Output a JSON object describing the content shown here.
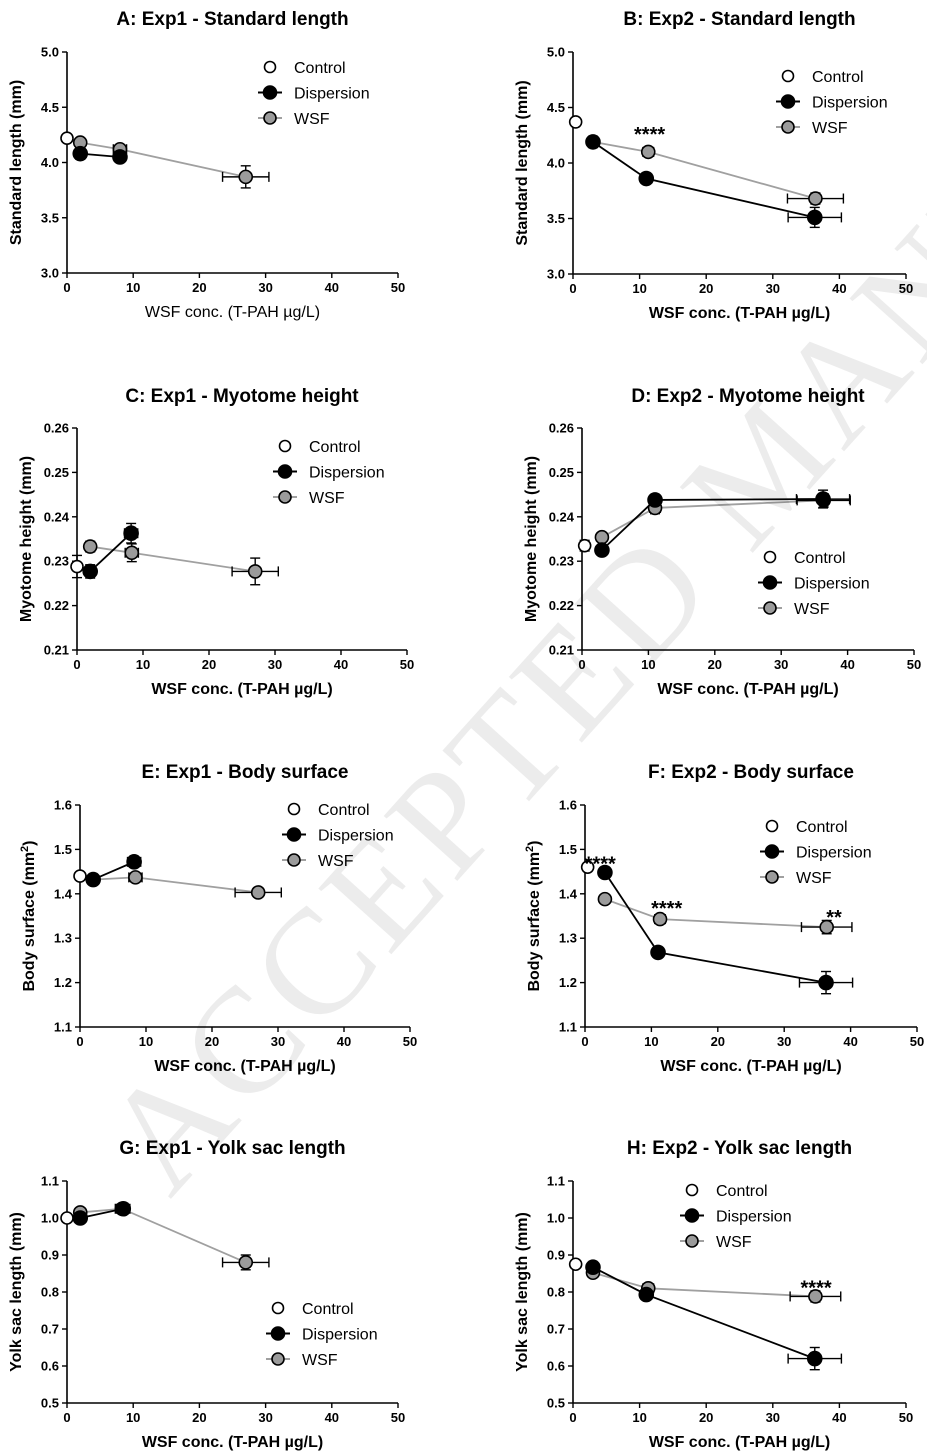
{
  "chart_data": [
    {
      "type": "line",
      "title": "A: Exp1 - Standard length",
      "xlabel": "WSF conc. (T-PAH µg/L)",
      "ylabel": "Standard length (mm)",
      "xlim": [
        0,
        50
      ],
      "ylim": [
        3.0,
        5.0
      ],
      "xticks": [
        "0",
        "10",
        "20",
        "30",
        "40",
        "50"
      ],
      "yticks": [
        "3.0",
        "3.5",
        "4.0",
        "4.5",
        "5.0"
      ],
      "legend": [
        "Control",
        "Dispersion",
        "WSF"
      ],
      "legend_position": "top-right",
      "series": [
        {
          "name": "Control",
          "x": [
            0
          ],
          "y": [
            4.22
          ],
          "yerr": [
            0.02
          ],
          "xerr": [
            0
          ]
        },
        {
          "name": "Dispersion",
          "x": [
            2,
            8
          ],
          "y": [
            4.08,
            4.05
          ],
          "yerr": [
            0.05,
            0.03
          ],
          "xerr": [
            0,
            0.7
          ]
        },
        {
          "name": "WSF",
          "x": [
            2,
            8,
            27
          ],
          "y": [
            4.18,
            4.12,
            3.87
          ],
          "yerr": [
            0.02,
            0.03,
            0.1
          ],
          "xerr": [
            0,
            1.0,
            3.5
          ]
        }
      ],
      "annotations": []
    },
    {
      "type": "line",
      "title": "B: Exp2 - Standard length",
      "xlabel": "WSF conc. (T-PAH µg/L)",
      "ylabel": "Standard length (mm)",
      "xlim": [
        0,
        50
      ],
      "ylim": [
        3.0,
        5.0
      ],
      "xticks": [
        "0",
        "10",
        "20",
        "30",
        "40",
        "50"
      ],
      "yticks": [
        "3.0",
        "3.5",
        "4.0",
        "4.5",
        "5.0"
      ],
      "legend": [
        "Control",
        "Dispersion",
        "WSF"
      ],
      "legend_position": "top-right",
      "series": [
        {
          "name": "Control",
          "x": [
            0.4
          ],
          "y": [
            4.37
          ],
          "yerr": [
            0.02
          ],
          "xerr": [
            0
          ]
        },
        {
          "name": "Dispersion",
          "x": [
            3,
            11,
            36.3
          ],
          "y": [
            4.19,
            3.86,
            3.51
          ],
          "yerr": [
            0.05,
            0.03,
            0.09
          ],
          "xerr": [
            0,
            0.8,
            4.0
          ]
        },
        {
          "name": "WSF",
          "x": [
            3,
            11.3,
            36.4
          ],
          "y": [
            4.19,
            4.1,
            3.68
          ],
          "yerr": [
            0.04,
            0.03,
            0.05
          ],
          "xerr": [
            0,
            0.8,
            4.2
          ]
        }
      ],
      "annotations": [
        {
          "text": "****",
          "x": 11.5,
          "y": 4.27
        }
      ]
    },
    {
      "type": "line",
      "title": "C: Exp1 - Myotome height",
      "xlabel": "WSF conc. (T-PAH µg/L)",
      "ylabel": "Myotome height (mm)",
      "xlim": [
        0,
        50
      ],
      "ylim": [
        0.21,
        0.26
      ],
      "xticks": [
        "0",
        "10",
        "20",
        "30",
        "40",
        "50"
      ],
      "yticks": [
        "0.21",
        "0.22",
        "0.23",
        "0.24",
        "0.25",
        "0.26"
      ],
      "legend": [
        "Control",
        "Dispersion",
        "WSF"
      ],
      "legend_position": "top-right",
      "series": [
        {
          "name": "Control",
          "x": [
            0
          ],
          "y": [
            0.2288
          ],
          "yerr": [
            0.0025
          ],
          "xerr": [
            0
          ]
        },
        {
          "name": "Dispersion",
          "x": [
            2,
            8.2
          ],
          "y": [
            0.2277,
            0.2363
          ],
          "yerr": [
            0.0015,
            0.0022
          ],
          "xerr": [
            0,
            1.0
          ]
        },
        {
          "name": "WSF",
          "x": [
            2,
            8.3,
            27
          ],
          "y": [
            0.2333,
            0.2319,
            0.2277
          ],
          "yerr": [
            0.0012,
            0.002,
            0.003
          ],
          "xerr": [
            0,
            1.0,
            3.5
          ]
        }
      ],
      "annotations": []
    },
    {
      "type": "line",
      "title": "D: Exp2 - Myotome height",
      "xlabel": "WSF conc. (T-PAH µg/L)",
      "ylabel": "Myotome height (mm)",
      "xlim": [
        0,
        50
      ],
      "ylim": [
        0.21,
        0.26
      ],
      "xticks": [
        "0",
        "10",
        "20",
        "30",
        "40",
        "50"
      ],
      "yticks": [
        "0.21",
        "0.22",
        "0.23",
        "0.24",
        "0.25",
        "0.26"
      ],
      "legend": [
        "Control",
        "Dispersion",
        "WSF"
      ],
      "legend_position": "center-right",
      "series": [
        {
          "name": "Control",
          "x": [
            0.4
          ],
          "y": [
            0.2335
          ],
          "yerr": [
            0.0012
          ],
          "xerr": [
            0
          ]
        },
        {
          "name": "Dispersion",
          "x": [
            3,
            11,
            36.3
          ],
          "y": [
            0.2325,
            0.2438,
            0.244
          ],
          "yerr": [
            0.0008,
            0.0012,
            0.002
          ],
          "xerr": [
            0,
            0.8,
            4.0
          ]
        },
        {
          "name": "WSF",
          "x": [
            3,
            11,
            36.4
          ],
          "y": [
            0.2354,
            0.242,
            0.2437
          ],
          "yerr": [
            0.0008,
            0.0013,
            0.0015
          ],
          "xerr": [
            0,
            0.8,
            4.0
          ]
        }
      ],
      "annotations": []
    },
    {
      "type": "line",
      "title": "E: Exp1 - Body surface",
      "xlabel": "WSF conc. (T-PAH µg/L)",
      "ylabel": "Body surface (mm2)",
      "ylabel_parts": {
        "main": "Body surface (mm",
        "sup": "2",
        "end": ")"
      },
      "xlim": [
        0,
        50
      ],
      "ylim": [
        1.1,
        1.6
      ],
      "xticks": [
        "0",
        "10",
        "20",
        "30",
        "40",
        "50"
      ],
      "yticks": [
        "1.1",
        "1.2",
        "1.3",
        "1.4",
        "1.5",
        "1.6"
      ],
      "legend": [
        "Control",
        "Dispersion",
        "WSF"
      ],
      "legend_position": "top-right",
      "series": [
        {
          "name": "Control",
          "x": [
            0
          ],
          "y": [
            1.44
          ],
          "yerr": [
            0.008
          ],
          "xerr": [
            0
          ]
        },
        {
          "name": "Dispersion",
          "x": [
            2,
            8.2
          ],
          "y": [
            1.432,
            1.472
          ],
          "yerr": [
            0.01,
            0.012
          ],
          "xerr": [
            0,
            1.0
          ]
        },
        {
          "name": "WSF",
          "x": [
            2,
            8.4,
            27
          ],
          "y": [
            1.432,
            1.437,
            1.403
          ],
          "yerr": [
            0.008,
            0.01,
            0.01
          ],
          "xerr": [
            0,
            1.0,
            3.5
          ]
        }
      ],
      "annotations": []
    },
    {
      "type": "line",
      "title": "F: Exp2 - Body surface",
      "xlabel": "WSF conc. (T-PAH µg/L)",
      "ylabel": "Body surface (mm2)",
      "ylabel_parts": {
        "main": "Body surface (mm",
        "sup": "2",
        "end": ")"
      },
      "xlim": [
        0,
        50
      ],
      "ylim": [
        1.1,
        1.6
      ],
      "xticks": [
        "0",
        "10",
        "20",
        "30",
        "40",
        "50"
      ],
      "yticks": [
        "1.1",
        "1.2",
        "1.3",
        "1.4",
        "1.5",
        "1.6"
      ],
      "legend": [
        "Control",
        "Dispersion",
        "WSF"
      ],
      "legend_position": "top-right",
      "series": [
        {
          "name": "Control",
          "x": [
            0.4
          ],
          "y": [
            1.46
          ],
          "yerr": [
            0.008
          ],
          "xerr": [
            0
          ]
        },
        {
          "name": "Dispersion",
          "x": [
            3,
            11,
            36.3
          ],
          "y": [
            1.448,
            1.268,
            1.2
          ],
          "yerr": [
            0.008,
            0.01,
            0.025
          ],
          "xerr": [
            0,
            0.8,
            4.0
          ]
        },
        {
          "name": "WSF",
          "x": [
            3,
            11.3,
            36.4
          ],
          "y": [
            1.388,
            1.343,
            1.325
          ],
          "yerr": [
            0.006,
            0.008,
            0.015
          ],
          "xerr": [
            0,
            0.8,
            3.8
          ]
        }
      ],
      "annotations": [
        {
          "text": "****",
          "x": 2.3,
          "y": 1.47
        },
        {
          "text": "****",
          "x": 12.3,
          "y": 1.37
        },
        {
          "text": "**",
          "x": 37.5,
          "y": 1.35
        }
      ]
    },
    {
      "type": "line",
      "title": "G: Exp1 - Yolk sac length",
      "xlabel": "WSF conc. (T-PAH µg/L)",
      "ylabel": "Yolk sac length (mm)",
      "xlim": [
        0,
        50
      ],
      "ylim": [
        0.5,
        1.1
      ],
      "xticks": [
        "0",
        "10",
        "20",
        "30",
        "40",
        "50"
      ],
      "yticks": [
        "0.5",
        "0.6",
        "0.7",
        "0.8",
        "0.9",
        "1.0",
        "1.1"
      ],
      "legend": [
        "Control",
        "Dispersion",
        "WSF"
      ],
      "legend_position": "bottom-right",
      "series": [
        {
          "name": "Control",
          "x": [
            0
          ],
          "y": [
            1.0
          ],
          "yerr": [
            0.01
          ],
          "xerr": [
            0
          ]
        },
        {
          "name": "Dispersion",
          "x": [
            2,
            8.5
          ],
          "y": [
            1.0,
            1.025
          ],
          "yerr": [
            0.01,
            0.015
          ],
          "xerr": [
            0,
            1.0
          ]
        },
        {
          "name": "WSF",
          "x": [
            2,
            8.3,
            27
          ],
          "y": [
            1.015,
            1.025,
            0.88
          ],
          "yerr": [
            0.01,
            0.012,
            0.02
          ],
          "xerr": [
            0,
            1.0,
            3.5
          ]
        }
      ],
      "annotations": []
    },
    {
      "type": "line",
      "title": "H: Exp2 - Yolk sac length",
      "xlabel": "WSF conc. (T-PAH µg/L)",
      "ylabel": "Yolk sac length (mm)",
      "xlim": [
        0,
        50
      ],
      "ylim": [
        0.5,
        1.1
      ],
      "xticks": [
        "0",
        "10",
        "20",
        "30",
        "40",
        "50"
      ],
      "yticks": [
        "0.5",
        "0.6",
        "0.7",
        "0.8",
        "0.9",
        "1.0",
        "1.1"
      ],
      "legend": [
        "Control",
        "Dispersion",
        "WSF"
      ],
      "legend_position": "top-right",
      "series": [
        {
          "name": "Control",
          "x": [
            0.4
          ],
          "y": [
            0.875
          ],
          "yerr": [
            0.006
          ],
          "xerr": [
            0
          ]
        },
        {
          "name": "Dispersion",
          "x": [
            3,
            11,
            36.3
          ],
          "y": [
            0.867,
            0.793,
            0.62
          ],
          "yerr": [
            0.006,
            0.008,
            0.03
          ],
          "xerr": [
            0,
            0.8,
            4.0
          ]
        },
        {
          "name": "WSF",
          "x": [
            3,
            11.3,
            36.4
          ],
          "y": [
            0.852,
            0.81,
            0.788
          ],
          "yerr": [
            0.006,
            0.008,
            0.015
          ],
          "xerr": [
            0,
            0.8,
            3.8
          ]
        }
      ],
      "annotations": [
        {
          "text": "****",
          "x": 36.5,
          "y": 0.815
        }
      ]
    }
  ],
  "watermark": "ACCEPTED MANUSCRIPT",
  "colors": {
    "control_fill": "#ffffff",
    "dispersion_fill": "#000000",
    "wsf_fill": "#9b9b9b",
    "wsf_line": "#a0a0a0",
    "axis": "#000000"
  }
}
